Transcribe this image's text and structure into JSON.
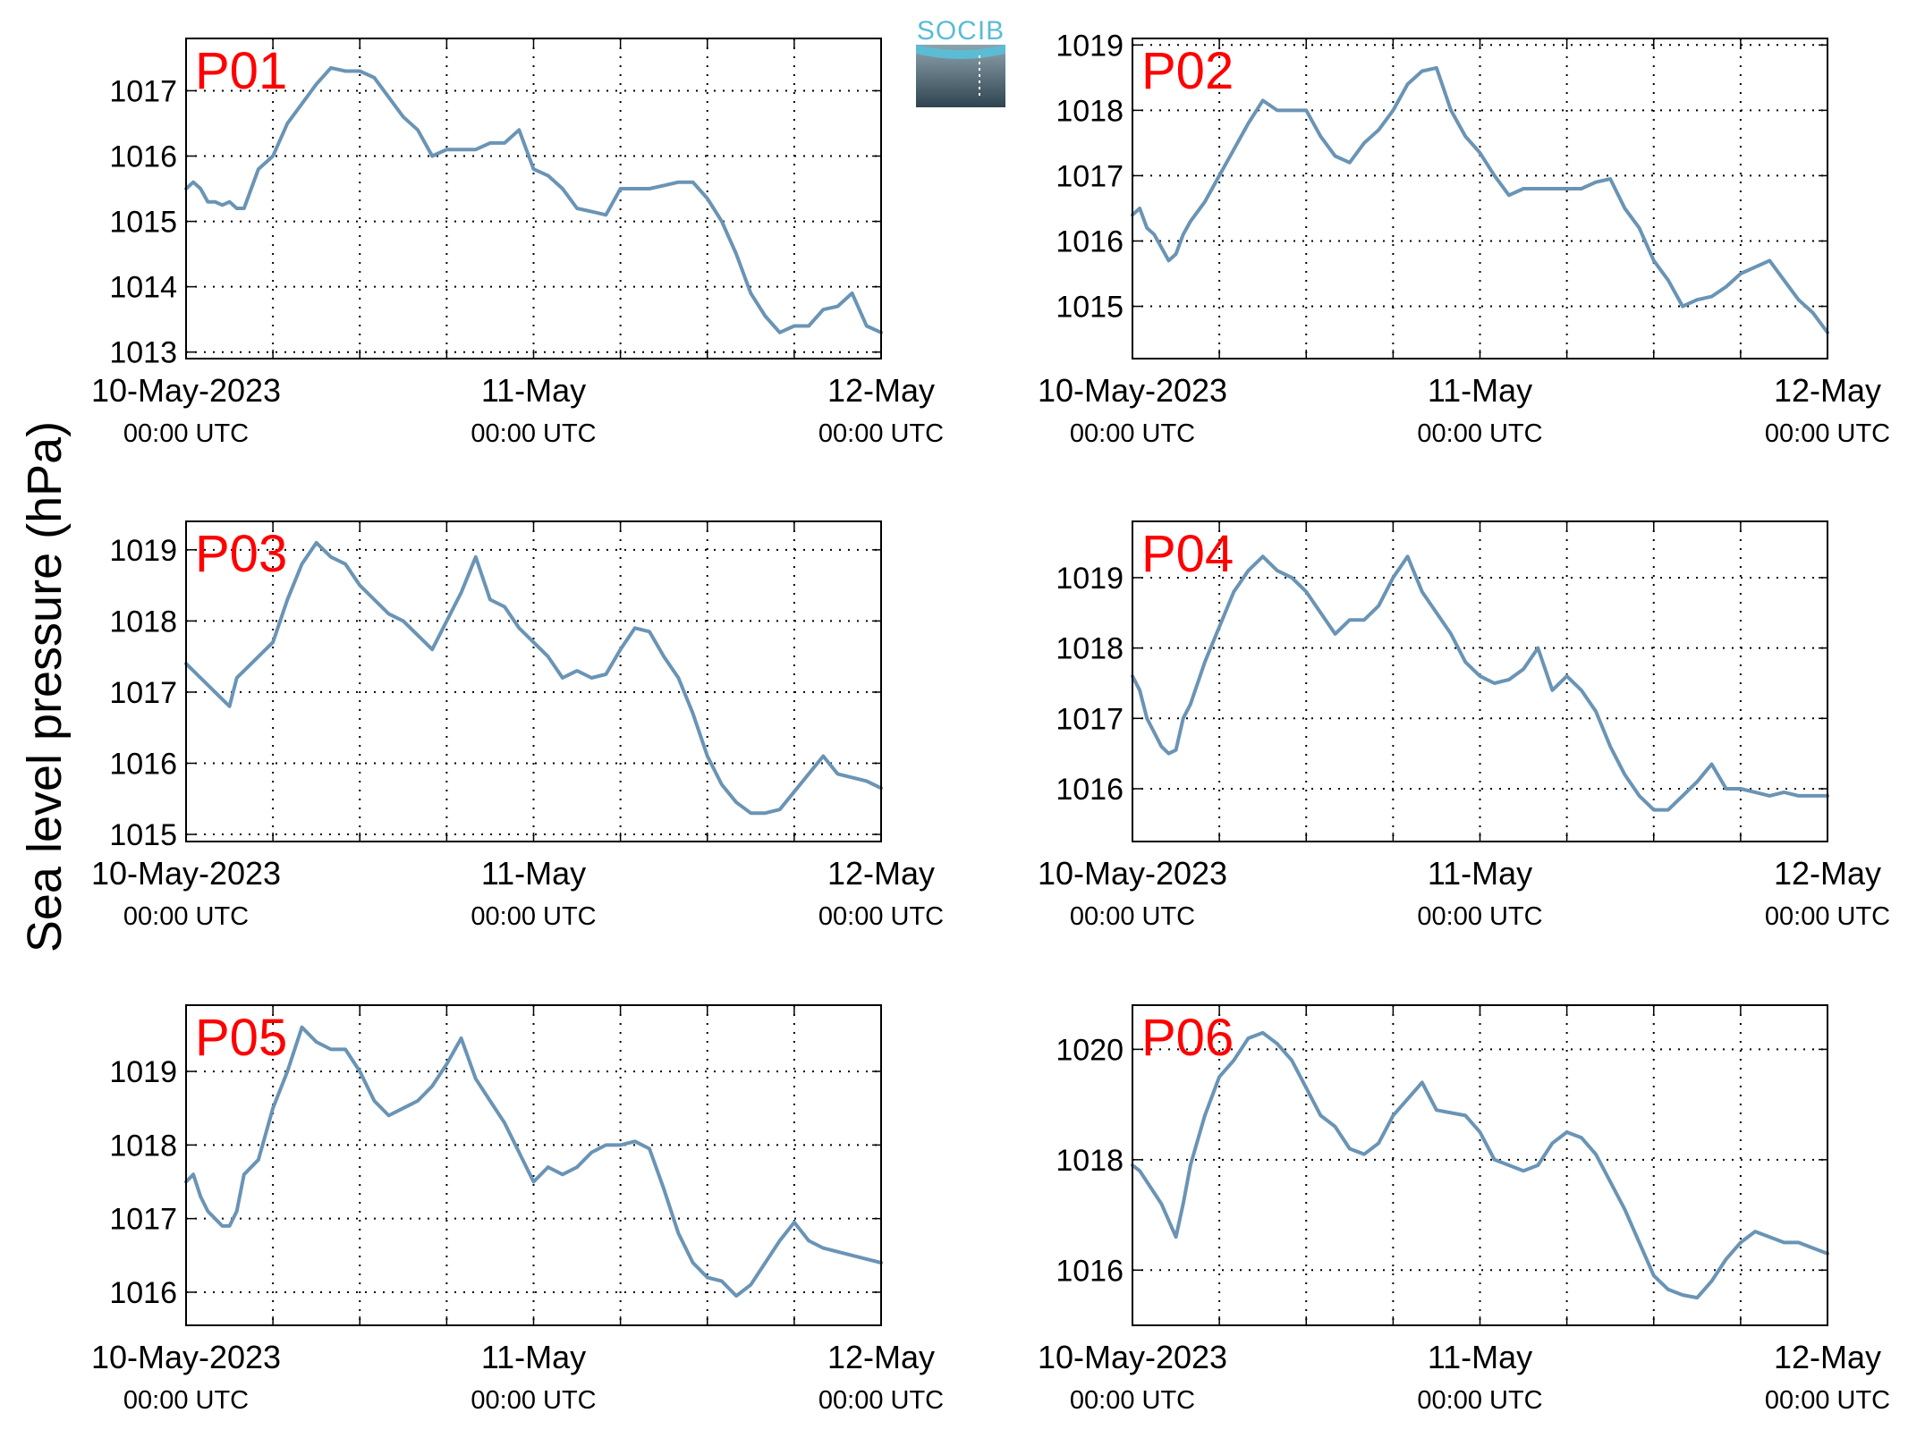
{
  "figure": {
    "ylabel": "Sea level pressure (hPa)",
    "line_color": "#6a94b5",
    "label_color": "#ff0000",
    "logo": {
      "text": "SOCIB",
      "colors": [
        "#5bbcd4",
        "#8fa3ad",
        "#2e4450"
      ]
    }
  },
  "chart_data": [
    {
      "type": "line",
      "name": "P01",
      "ylim": [
        1012.9,
        1017.8
      ],
      "yticks": [
        1013,
        1014,
        1015,
        1016,
        1017
      ],
      "xlim": [
        0,
        48
      ],
      "grid": true,
      "xtick_labels": [
        {
          "x": 0,
          "date": "10-May-2023",
          "time": "00:00 UTC"
        },
        {
          "x": 24,
          "date": "11-May",
          "time": "00:00 UTC"
        },
        {
          "x": 48,
          "date": "12-May",
          "time": "00:00 UTC"
        }
      ],
      "x": [
        0,
        0.5,
        1,
        1.5,
        2,
        2.5,
        3,
        3.5,
        4,
        5,
        6,
        7,
        8,
        9,
        10,
        11,
        12,
        13,
        14,
        15,
        16,
        17,
        18,
        19,
        20,
        21,
        22,
        23,
        24,
        25,
        26,
        27,
        28,
        29,
        30,
        31,
        32,
        33,
        34,
        35,
        36,
        37,
        38,
        39,
        40,
        41,
        42,
        43,
        44,
        45,
        46,
        47,
        48
      ],
      "values": [
        1015.5,
        1015.6,
        1015.5,
        1015.3,
        1015.3,
        1015.25,
        1015.3,
        1015.2,
        1015.2,
        1015.8,
        1016.0,
        1016.5,
        1016.8,
        1017.1,
        1017.35,
        1017.3,
        1017.3,
        1017.2,
        1016.9,
        1016.6,
        1016.4,
        1016.0,
        1016.1,
        1016.1,
        1016.1,
        1016.2,
        1016.2,
        1016.4,
        1015.8,
        1015.7,
        1015.5,
        1015.2,
        1015.15,
        1015.1,
        1015.5,
        1015.5,
        1015.5,
        1015.55,
        1015.6,
        1015.6,
        1015.35,
        1015.0,
        1014.5,
        1013.9,
        1013.55,
        1013.3,
        1013.4,
        1013.4,
        1013.65,
        1013.7,
        1013.9,
        1013.4,
        1013.3
      ]
    },
    {
      "type": "line",
      "name": "P02",
      "ylim": [
        1014.2,
        1019.1
      ],
      "yticks": [
        1015,
        1016,
        1017,
        1018,
        1019
      ],
      "xlim": [
        0,
        48
      ],
      "grid": true,
      "xtick_labels": [
        {
          "x": 0,
          "date": "10-May-2023",
          "time": "00:00 UTC"
        },
        {
          "x": 24,
          "date": "11-May",
          "time": "00:00 UTC"
        },
        {
          "x": 48,
          "date": "12-May",
          "time": "00:00 UTC"
        }
      ],
      "x": [
        0,
        0.5,
        1,
        1.5,
        2,
        2.5,
        3,
        3.5,
        4,
        5,
        6,
        7,
        8,
        9,
        10,
        11,
        12,
        13,
        14,
        15,
        16,
        17,
        18,
        19,
        20,
        21,
        22,
        23,
        24,
        25,
        26,
        27,
        28,
        29,
        30,
        31,
        32,
        33,
        34,
        35,
        36,
        37,
        38,
        39,
        40,
        41,
        42,
        43,
        44,
        45,
        46,
        47,
        48
      ],
      "values": [
        1016.4,
        1016.5,
        1016.2,
        1016.1,
        1015.9,
        1015.7,
        1015.8,
        1016.1,
        1016.3,
        1016.6,
        1017.0,
        1017.4,
        1017.8,
        1018.15,
        1018.0,
        1018.0,
        1018.0,
        1017.6,
        1017.3,
        1017.2,
        1017.5,
        1017.7,
        1018.0,
        1018.4,
        1018.6,
        1018.65,
        1018.0,
        1017.6,
        1017.35,
        1017.0,
        1016.7,
        1016.8,
        1016.8,
        1016.8,
        1016.8,
        1016.8,
        1016.9,
        1016.95,
        1016.5,
        1016.2,
        1015.7,
        1015.4,
        1015.0,
        1015.1,
        1015.15,
        1015.3,
        1015.5,
        1015.6,
        1015.7,
        1015.4,
        1015.1,
        1014.9,
        1014.6
      ]
    },
    {
      "type": "line",
      "name": "P03",
      "ylim": [
        1014.9,
        1019.4
      ],
      "yticks": [
        1015,
        1016,
        1017,
        1018,
        1019
      ],
      "xlim": [
        0,
        48
      ],
      "grid": true,
      "xtick_labels": [
        {
          "x": 0,
          "date": "10-May-2023",
          "time": "00:00 UTC"
        },
        {
          "x": 24,
          "date": "11-May",
          "time": "00:00 UTC"
        },
        {
          "x": 48,
          "date": "12-May",
          "time": "00:00 UTC"
        }
      ],
      "x": [
        0,
        0.5,
        1,
        1.5,
        2,
        2.5,
        3,
        3.5,
        4,
        5,
        6,
        7,
        8,
        9,
        10,
        11,
        12,
        13,
        14,
        15,
        16,
        17,
        18,
        19,
        20,
        21,
        22,
        23,
        24,
        25,
        26,
        27,
        28,
        29,
        30,
        31,
        32,
        33,
        34,
        35,
        36,
        37,
        38,
        39,
        40,
        41,
        42,
        43,
        44,
        45,
        46,
        47,
        48
      ],
      "values": [
        1017.4,
        1017.3,
        1017.2,
        1017.1,
        1017.0,
        1016.9,
        1016.8,
        1017.2,
        1017.3,
        1017.5,
        1017.7,
        1018.3,
        1018.8,
        1019.1,
        1018.9,
        1018.8,
        1018.5,
        1018.3,
        1018.1,
        1018.0,
        1017.8,
        1017.6,
        1018.0,
        1018.4,
        1018.9,
        1018.3,
        1018.2,
        1017.9,
        1017.7,
        1017.5,
        1017.2,
        1017.3,
        1017.2,
        1017.25,
        1017.6,
        1017.9,
        1017.85,
        1017.5,
        1017.2,
        1016.7,
        1016.1,
        1015.7,
        1015.45,
        1015.3,
        1015.3,
        1015.35,
        1015.6,
        1015.85,
        1016.1,
        1015.85,
        1015.8,
        1015.75,
        1015.65
      ]
    },
    {
      "type": "line",
      "name": "P04",
      "ylim": [
        1015.25,
        1019.8
      ],
      "yticks": [
        1016,
        1017,
        1018,
        1019
      ],
      "xlim": [
        0,
        48
      ],
      "grid": true,
      "xtick_labels": [
        {
          "x": 0,
          "date": "10-May-2023",
          "time": "00:00 UTC"
        },
        {
          "x": 24,
          "date": "11-May",
          "time": "00:00 UTC"
        },
        {
          "x": 48,
          "date": "12-May",
          "time": "00:00 UTC"
        }
      ],
      "x": [
        0,
        0.5,
        1,
        1.5,
        2,
        2.5,
        3,
        3.5,
        4,
        5,
        6,
        7,
        8,
        9,
        10,
        11,
        12,
        13,
        14,
        15,
        16,
        17,
        18,
        19,
        20,
        21,
        22,
        23,
        24,
        25,
        26,
        27,
        28,
        29,
        30,
        31,
        32,
        33,
        34,
        35,
        36,
        37,
        38,
        39,
        40,
        41,
        42,
        43,
        44,
        45,
        46,
        47,
        48
      ],
      "values": [
        1017.6,
        1017.4,
        1017.0,
        1016.8,
        1016.6,
        1016.5,
        1016.55,
        1017.0,
        1017.2,
        1017.8,
        1018.3,
        1018.8,
        1019.1,
        1019.3,
        1019.1,
        1019.0,
        1018.8,
        1018.5,
        1018.2,
        1018.4,
        1018.4,
        1018.6,
        1019.0,
        1019.3,
        1018.8,
        1018.5,
        1018.2,
        1017.8,
        1017.6,
        1017.5,
        1017.55,
        1017.7,
        1018.0,
        1017.4,
        1017.6,
        1017.4,
        1017.1,
        1016.6,
        1016.2,
        1015.9,
        1015.7,
        1015.7,
        1015.9,
        1016.1,
        1016.35,
        1016.0,
        1016.0,
        1015.95,
        1015.9,
        1015.95,
        1015.9,
        1015.9,
        1015.9
      ]
    },
    {
      "type": "line",
      "name": "P05",
      "ylim": [
        1015.55,
        1019.9
      ],
      "yticks": [
        1016,
        1017,
        1018,
        1019
      ],
      "xlim": [
        0,
        48
      ],
      "grid": true,
      "xtick_labels": [
        {
          "x": 0,
          "date": "10-May-2023",
          "time": "00:00 UTC"
        },
        {
          "x": 24,
          "date": "11-May",
          "time": "00:00 UTC"
        },
        {
          "x": 48,
          "date": "12-May",
          "time": "00:00 UTC"
        }
      ],
      "x": [
        0,
        0.5,
        1,
        1.5,
        2,
        2.5,
        3,
        3.5,
        4,
        5,
        6,
        7,
        8,
        9,
        10,
        11,
        12,
        13,
        14,
        15,
        16,
        17,
        18,
        19,
        20,
        21,
        22,
        23,
        24,
        25,
        26,
        27,
        28,
        29,
        30,
        31,
        32,
        33,
        34,
        35,
        36,
        37,
        38,
        39,
        40,
        41,
        42,
        43,
        44,
        45,
        46,
        47,
        48
      ],
      "values": [
        1017.5,
        1017.6,
        1017.3,
        1017.1,
        1017.0,
        1016.9,
        1016.9,
        1017.1,
        1017.6,
        1017.8,
        1018.5,
        1019.0,
        1019.6,
        1019.4,
        1019.3,
        1019.3,
        1019.0,
        1018.6,
        1018.4,
        1018.5,
        1018.6,
        1018.8,
        1019.1,
        1019.45,
        1018.9,
        1018.6,
        1018.3,
        1017.9,
        1017.5,
        1017.7,
        1017.6,
        1017.7,
        1017.9,
        1018.0,
        1018.0,
        1018.05,
        1017.95,
        1017.4,
        1016.8,
        1016.4,
        1016.2,
        1016.15,
        1015.95,
        1016.1,
        1016.4,
        1016.7,
        1016.95,
        1016.7,
        1016.6,
        1016.55,
        1016.5,
        1016.45,
        1016.4
      ]
    },
    {
      "type": "line",
      "name": "P06",
      "ylim": [
        1015.0,
        1020.8
      ],
      "yticks": [
        1016,
        1018,
        1020
      ],
      "xlim": [
        0,
        48
      ],
      "grid": true,
      "xtick_labels": [
        {
          "x": 0,
          "date": "10-May-2023",
          "time": "00:00 UTC"
        },
        {
          "x": 24,
          "date": "11-May",
          "time": "00:00 UTC"
        },
        {
          "x": 48,
          "date": "12-May",
          "time": "00:00 UTC"
        }
      ],
      "x": [
        0,
        0.5,
        1,
        1.5,
        2,
        2.5,
        3,
        3.5,
        4,
        5,
        6,
        7,
        8,
        9,
        10,
        11,
        12,
        13,
        14,
        15,
        16,
        17,
        18,
        19,
        20,
        21,
        22,
        23,
        24,
        25,
        26,
        27,
        28,
        29,
        30,
        31,
        32,
        33,
        34,
        35,
        36,
        37,
        38,
        39,
        40,
        41,
        42,
        43,
        44,
        45,
        46,
        47,
        48
      ],
      "values": [
        1017.9,
        1017.8,
        1017.6,
        1017.4,
        1017.2,
        1016.9,
        1016.6,
        1017.2,
        1017.9,
        1018.8,
        1019.5,
        1019.8,
        1020.2,
        1020.3,
        1020.1,
        1019.8,
        1019.3,
        1018.8,
        1018.6,
        1018.2,
        1018.1,
        1018.3,
        1018.8,
        1019.1,
        1019.4,
        1018.9,
        1018.85,
        1018.8,
        1018.5,
        1018.0,
        1017.9,
        1017.8,
        1017.9,
        1018.3,
        1018.5,
        1018.4,
        1018.1,
        1017.6,
        1017.1,
        1016.5,
        1015.9,
        1015.65,
        1015.55,
        1015.5,
        1015.8,
        1016.2,
        1016.5,
        1016.7,
        1016.6,
        1016.5,
        1016.5,
        1016.4,
        1016.3
      ]
    }
  ]
}
